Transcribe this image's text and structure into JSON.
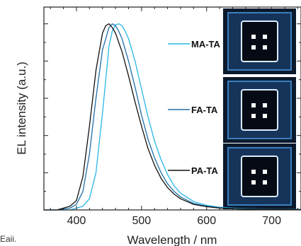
{
  "corner_text": "Eaii.",
  "chart_data": {
    "type": "line",
    "xlabel": "Wavelength / nm",
    "ylabel": "EL intensity (a.u.)",
    "xlim": [
      350,
      745
    ],
    "ylim": [
      0,
      1.09
    ],
    "x_ticks": [
      400,
      500,
      600,
      700
    ],
    "y_tick_labels_shown": false,
    "grid": "none",
    "legend_placement": "right, inside plot, next to device photos",
    "series": [
      {
        "name": "MA-TA",
        "color": "#29b6e6",
        "x": [
          350,
          370,
          390,
          410,
          420,
          430,
          440,
          450,
          455,
          460,
          465,
          470,
          475,
          480,
          490,
          500,
          510,
          520,
          530,
          540,
          550,
          560,
          580,
          600,
          620,
          650,
          700,
          745
        ],
        "y": [
          0.0,
          0.0,
          0.0,
          0.02,
          0.06,
          0.2,
          0.52,
          0.88,
          0.96,
          0.995,
          1.0,
          0.99,
          0.96,
          0.92,
          0.8,
          0.65,
          0.5,
          0.37,
          0.27,
          0.19,
          0.13,
          0.09,
          0.045,
          0.025,
          0.015,
          0.008,
          0.004,
          0.003
        ]
      },
      {
        "name": "FA-TA",
        "color": "#1f6fa8",
        "x": [
          350,
          370,
          390,
          400,
          410,
          420,
          430,
          440,
          450,
          455,
          460,
          465,
          470,
          480,
          490,
          500,
          510,
          520,
          530,
          540,
          550,
          560,
          580,
          600,
          620,
          650,
          700,
          745
        ],
        "y": [
          0.0,
          0.0,
          0.01,
          0.03,
          0.1,
          0.3,
          0.6,
          0.86,
          0.98,
          1.0,
          0.99,
          0.96,
          0.92,
          0.8,
          0.66,
          0.51,
          0.38,
          0.28,
          0.2,
          0.14,
          0.1,
          0.07,
          0.035,
          0.02,
          0.012,
          0.006,
          0.003,
          0.002
        ]
      },
      {
        "name": "PA-TA",
        "color": "#111111",
        "x": [
          350,
          370,
          390,
          400,
          410,
          420,
          430,
          440,
          445,
          450,
          455,
          460,
          470,
          480,
          490,
          500,
          510,
          520,
          530,
          540,
          550,
          560,
          580,
          600,
          620,
          650,
          700,
          745
        ],
        "y": [
          0.0,
          0.0,
          0.02,
          0.05,
          0.18,
          0.45,
          0.75,
          0.95,
          0.99,
          1.0,
          0.98,
          0.95,
          0.85,
          0.72,
          0.58,
          0.45,
          0.33,
          0.24,
          0.17,
          0.12,
          0.085,
          0.06,
          0.03,
          0.018,
          0.01,
          0.005,
          0.003,
          0.002
        ]
      }
    ]
  }
}
